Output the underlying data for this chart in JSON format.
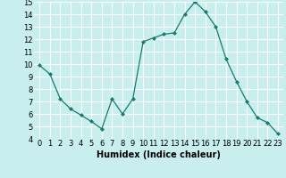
{
  "x": [
    0,
    1,
    2,
    3,
    4,
    5,
    6,
    7,
    8,
    9,
    10,
    11,
    12,
    13,
    14,
    15,
    16,
    17,
    18,
    19,
    20,
    21,
    22,
    23
  ],
  "y": [
    9.9,
    9.2,
    7.2,
    6.4,
    5.9,
    5.4,
    4.8,
    7.2,
    6.0,
    7.2,
    11.8,
    12.1,
    12.4,
    12.5,
    14.0,
    15.0,
    14.2,
    13.0,
    10.4,
    8.6,
    7.0,
    5.7,
    5.3,
    4.4
  ],
  "xlabel": "Humidex (Indice chaleur)",
  "ylim": [
    4,
    15
  ],
  "yticks": [
    4,
    5,
    6,
    7,
    8,
    9,
    10,
    11,
    12,
    13,
    14,
    15
  ],
  "xticks": [
    0,
    1,
    2,
    3,
    4,
    5,
    6,
    7,
    8,
    9,
    10,
    11,
    12,
    13,
    14,
    15,
    16,
    17,
    18,
    19,
    20,
    21,
    22,
    23
  ],
  "line_color": "#1a7a6e",
  "marker": "D",
  "marker_size": 2.0,
  "bg_color": "#c8eeee",
  "grid_color": "#b0d8d8",
  "label_fontsize": 7,
  "tick_fontsize": 6
}
